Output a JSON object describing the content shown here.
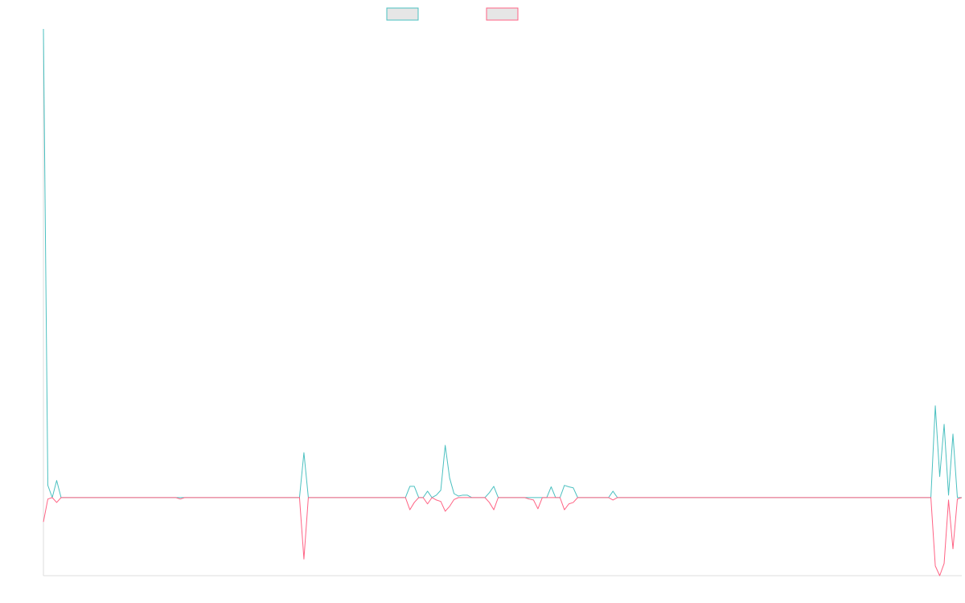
{
  "chart_data": {
    "type": "line",
    "title": "",
    "xlabel": "",
    "ylabel": "",
    "grid": false,
    "legend": "top-center",
    "ylim": [
      -16,
      96
    ],
    "series": [
      {
        "color": "#4bc0c0",
        "fill": "#e6e6e6",
        "points": [
          [
            0,
            96
          ],
          [
            1,
            2.5
          ],
          [
            2,
            0
          ],
          [
            3,
            3.5
          ],
          [
            4,
            0
          ],
          [
            30,
            0
          ],
          [
            31,
            0
          ],
          [
            32,
            0
          ],
          [
            58,
            0
          ],
          [
            59,
            9.2
          ],
          [
            60,
            0
          ],
          [
            82,
            0
          ],
          [
            83,
            2.3
          ],
          [
            84,
            2.3
          ],
          [
            85,
            0
          ],
          [
            86,
            0
          ],
          [
            87,
            1.3
          ],
          [
            88,
            0
          ],
          [
            89,
            0.5
          ],
          [
            90,
            1.5
          ],
          [
            91,
            10.7
          ],
          [
            92,
            4
          ],
          [
            93,
            0.8
          ],
          [
            94,
            0.3
          ],
          [
            95,
            0.5
          ],
          [
            96,
            0.5
          ],
          [
            97,
            0
          ],
          [
            98,
            0
          ],
          [
            99,
            0
          ],
          [
            100,
            0
          ],
          [
            101,
            1
          ],
          [
            102,
            2.3
          ],
          [
            103,
            0
          ],
          [
            109,
            0
          ],
          [
            110,
            0
          ],
          [
            111,
            0
          ],
          [
            112,
            0
          ],
          [
            113,
            0
          ],
          [
            114,
            0
          ],
          [
            115,
            2.2
          ],
          [
            116,
            0
          ],
          [
            117,
            0
          ],
          [
            118,
            2.5
          ],
          [
            119,
            2.2
          ],
          [
            120,
            2.0
          ],
          [
            121,
            0
          ],
          [
            128,
            0
          ],
          [
            129,
            1.3
          ],
          [
            130,
            0
          ],
          [
            200,
            0
          ],
          [
            201,
            0
          ],
          [
            202,
            18.8
          ],
          [
            203,
            4.3
          ],
          [
            204,
            15
          ],
          [
            205,
            0.5
          ],
          [
            206,
            13
          ],
          [
            207,
            0
          ],
          [
            208,
            0
          ]
        ]
      },
      {
        "color": "#ff6384",
        "fill": "#e6e6e6",
        "points": [
          [
            0,
            -5
          ],
          [
            1,
            -0.3
          ],
          [
            2,
            0
          ],
          [
            3,
            -1
          ],
          [
            4,
            0
          ],
          [
            30,
            0
          ],
          [
            31,
            -0.3
          ],
          [
            32,
            0
          ],
          [
            58,
            0
          ],
          [
            59,
            -12.6
          ],
          [
            60,
            0
          ],
          [
            82,
            0
          ],
          [
            83,
            -2.5
          ],
          [
            84,
            -1
          ],
          [
            85,
            0
          ],
          [
            86,
            0
          ],
          [
            87,
            -1.3
          ],
          [
            88,
            0
          ],
          [
            89,
            -0.5
          ],
          [
            90,
            -0.8
          ],
          [
            91,
            -2.8
          ],
          [
            92,
            -1.8
          ],
          [
            93,
            -0.4
          ],
          [
            94,
            0
          ],
          [
            95,
            0
          ],
          [
            96,
            0
          ],
          [
            97,
            0
          ],
          [
            98,
            0
          ],
          [
            99,
            0
          ],
          [
            100,
            0
          ],
          [
            101,
            -1
          ],
          [
            102,
            -2.5
          ],
          [
            103,
            0
          ],
          [
            109,
            0
          ],
          [
            110,
            -0.3
          ],
          [
            111,
            -0.5
          ],
          [
            112,
            -2.3
          ],
          [
            113,
            0
          ],
          [
            114,
            0
          ],
          [
            115,
            0
          ],
          [
            116,
            0
          ],
          [
            117,
            0
          ],
          [
            118,
            -2.5
          ],
          [
            119,
            -1.3
          ],
          [
            120,
            -1.0
          ],
          [
            121,
            0
          ],
          [
            128,
            0
          ],
          [
            129,
            -0.5
          ],
          [
            130,
            0
          ],
          [
            200,
            0
          ],
          [
            201,
            0
          ],
          [
            202,
            -14
          ],
          [
            203,
            -16
          ],
          [
            204,
            -13.5
          ],
          [
            205,
            -0.5
          ],
          [
            206,
            -10.5
          ],
          [
            207,
            -0.3
          ],
          [
            208,
            0
          ]
        ]
      }
    ]
  }
}
